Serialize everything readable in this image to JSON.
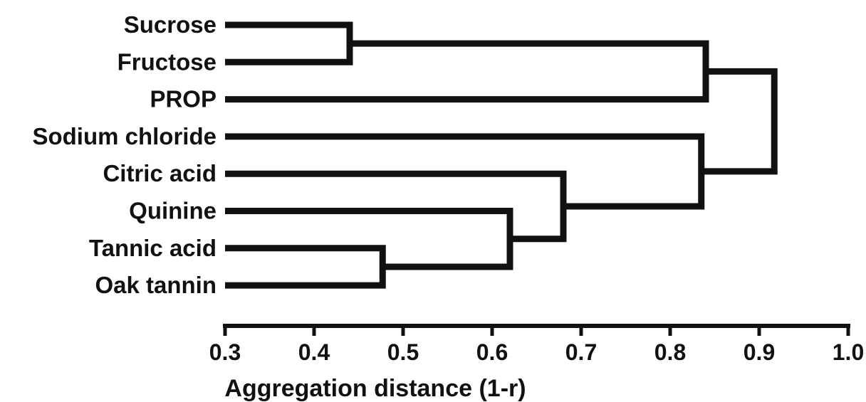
{
  "chart_data": {
    "type": "dendrogram",
    "xlabel": "Aggregation distance (1-r)",
    "xlim": [
      0.3,
      1.0
    ],
    "xticks": [
      "0.3",
      "0.4",
      "0.5",
      "0.6",
      "0.7",
      "0.8",
      "0.9",
      "1.0"
    ],
    "grid": false,
    "leaves": [
      "Sucrose",
      "Fructose",
      "PROP",
      "Sodium chloride",
      "Citric acid",
      "Quinine",
      "Tannic acid",
      "Oak tannin"
    ],
    "merges": [
      {
        "id": "m1",
        "left": "Sucrose",
        "right": "Fructose",
        "distance": 0.44
      },
      {
        "id": "m2",
        "left": "Tannic acid",
        "right": "Oak tannin",
        "distance": 0.477
      },
      {
        "id": "m3",
        "left": "Quinine",
        "right": "m2",
        "distance": 0.62
      },
      {
        "id": "m4",
        "left": "Citric acid",
        "right": "m3",
        "distance": 0.68
      },
      {
        "id": "m5",
        "left": "Sodium chloride",
        "right": "m4",
        "distance": 0.835
      },
      {
        "id": "m6",
        "left": "m1",
        "right": "PROP",
        "distance": 0.84
      },
      {
        "id": "m7",
        "left": "m6",
        "right": "m5",
        "distance": 0.917
      }
    ]
  }
}
